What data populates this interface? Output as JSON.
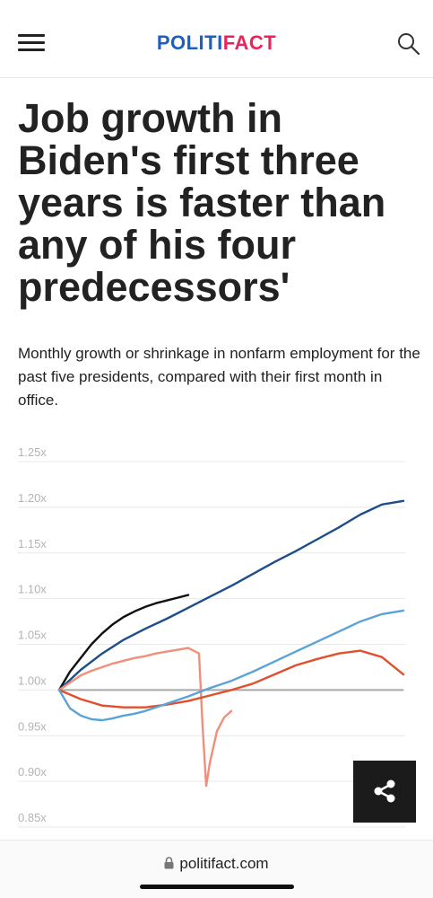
{
  "header": {
    "logo_part1": "POLITI",
    "logo_part2": "FACT",
    "menu_icon": "hamburger-menu-icon",
    "search_icon": "search-icon",
    "brand_blue": "#1f5fbf",
    "brand_pink": "#e8245a"
  },
  "article": {
    "headline": "Job growth in Biden's first three years is faster than any of his four predecessors'",
    "subtitle": "Monthly growth or shrinkage in nonfarm employment for the past five presidents, compared with their first month in office."
  },
  "share": {
    "icon": "share-icon"
  },
  "browser": {
    "url": "politifact.com",
    "lock_icon": "lock-icon"
  },
  "chart_data": {
    "type": "line",
    "title": "",
    "xlabel": "",
    "ylabel": "",
    "ylim": [
      0.85,
      1.25
    ],
    "xlim": [
      0,
      96
    ],
    "yticks": [
      1.25,
      1.2,
      1.15,
      1.1,
      1.05,
      1.0,
      0.95,
      0.9,
      0.85
    ],
    "ytick_labels": [
      "1.25x",
      "1.20x",
      "1.15x",
      "1.10x",
      "1.05x",
      "1.00x",
      "0.95x",
      "0.90x",
      "0.85x"
    ],
    "grid": true,
    "legend": "none",
    "baseline": 1.0,
    "series": [
      {
        "color": "#111111",
        "x": [
          0,
          3,
          6,
          9,
          12,
          15,
          18,
          21,
          24,
          27,
          30,
          33,
          36
        ],
        "y": [
          1.0,
          1.02,
          1.035,
          1.05,
          1.062,
          1.072,
          1.08,
          1.086,
          1.091,
          1.095,
          1.098,
          1.101,
          1.104
        ]
      },
      {
        "color": "#1d4e89",
        "x": [
          0,
          6,
          12,
          18,
          24,
          30,
          36,
          42,
          48,
          54,
          60,
          66,
          72,
          78,
          84,
          90,
          96
        ],
        "y": [
          1.0,
          1.022,
          1.04,
          1.055,
          1.067,
          1.078,
          1.09,
          1.102,
          1.114,
          1.127,
          1.14,
          1.152,
          1.165,
          1.178,
          1.192,
          1.203,
          1.207
        ]
      },
      {
        "color": "#f08f7a",
        "x": [
          0,
          3,
          6,
          9,
          12,
          15,
          18,
          21,
          24,
          27,
          30,
          33,
          36,
          39,
          40,
          41,
          42,
          44,
          46,
          48
        ],
        "y": [
          1.0,
          1.008,
          1.016,
          1.021,
          1.025,
          1.029,
          1.032,
          1.035,
          1.037,
          1.04,
          1.042,
          1.044,
          1.046,
          1.04,
          0.96,
          0.895,
          0.92,
          0.955,
          0.97,
          0.977
        ]
      },
      {
        "color": "#e0502e",
        "x": [
          0,
          6,
          12,
          18,
          24,
          30,
          36,
          42,
          48,
          54,
          60,
          66,
          72,
          78,
          84,
          90,
          96
        ],
        "y": [
          1.0,
          0.99,
          0.983,
          0.981,
          0.981,
          0.984,
          0.988,
          0.994,
          1.0,
          1.007,
          1.017,
          1.027,
          1.034,
          1.04,
          1.043,
          1.036,
          1.017
        ]
      },
      {
        "color": "#5ba3d6",
        "x": [
          0,
          3,
          6,
          9,
          12,
          15,
          18,
          21,
          24,
          30,
          36,
          42,
          48,
          54,
          60,
          66,
          72,
          78,
          84,
          90,
          96
        ],
        "y": [
          1.0,
          0.98,
          0.972,
          0.968,
          0.967,
          0.969,
          0.972,
          0.974,
          0.977,
          0.985,
          0.993,
          1.002,
          1.01,
          1.02,
          1.031,
          1.042,
          1.053,
          1.064,
          1.075,
          1.083,
          1.087
        ]
      }
    ]
  }
}
